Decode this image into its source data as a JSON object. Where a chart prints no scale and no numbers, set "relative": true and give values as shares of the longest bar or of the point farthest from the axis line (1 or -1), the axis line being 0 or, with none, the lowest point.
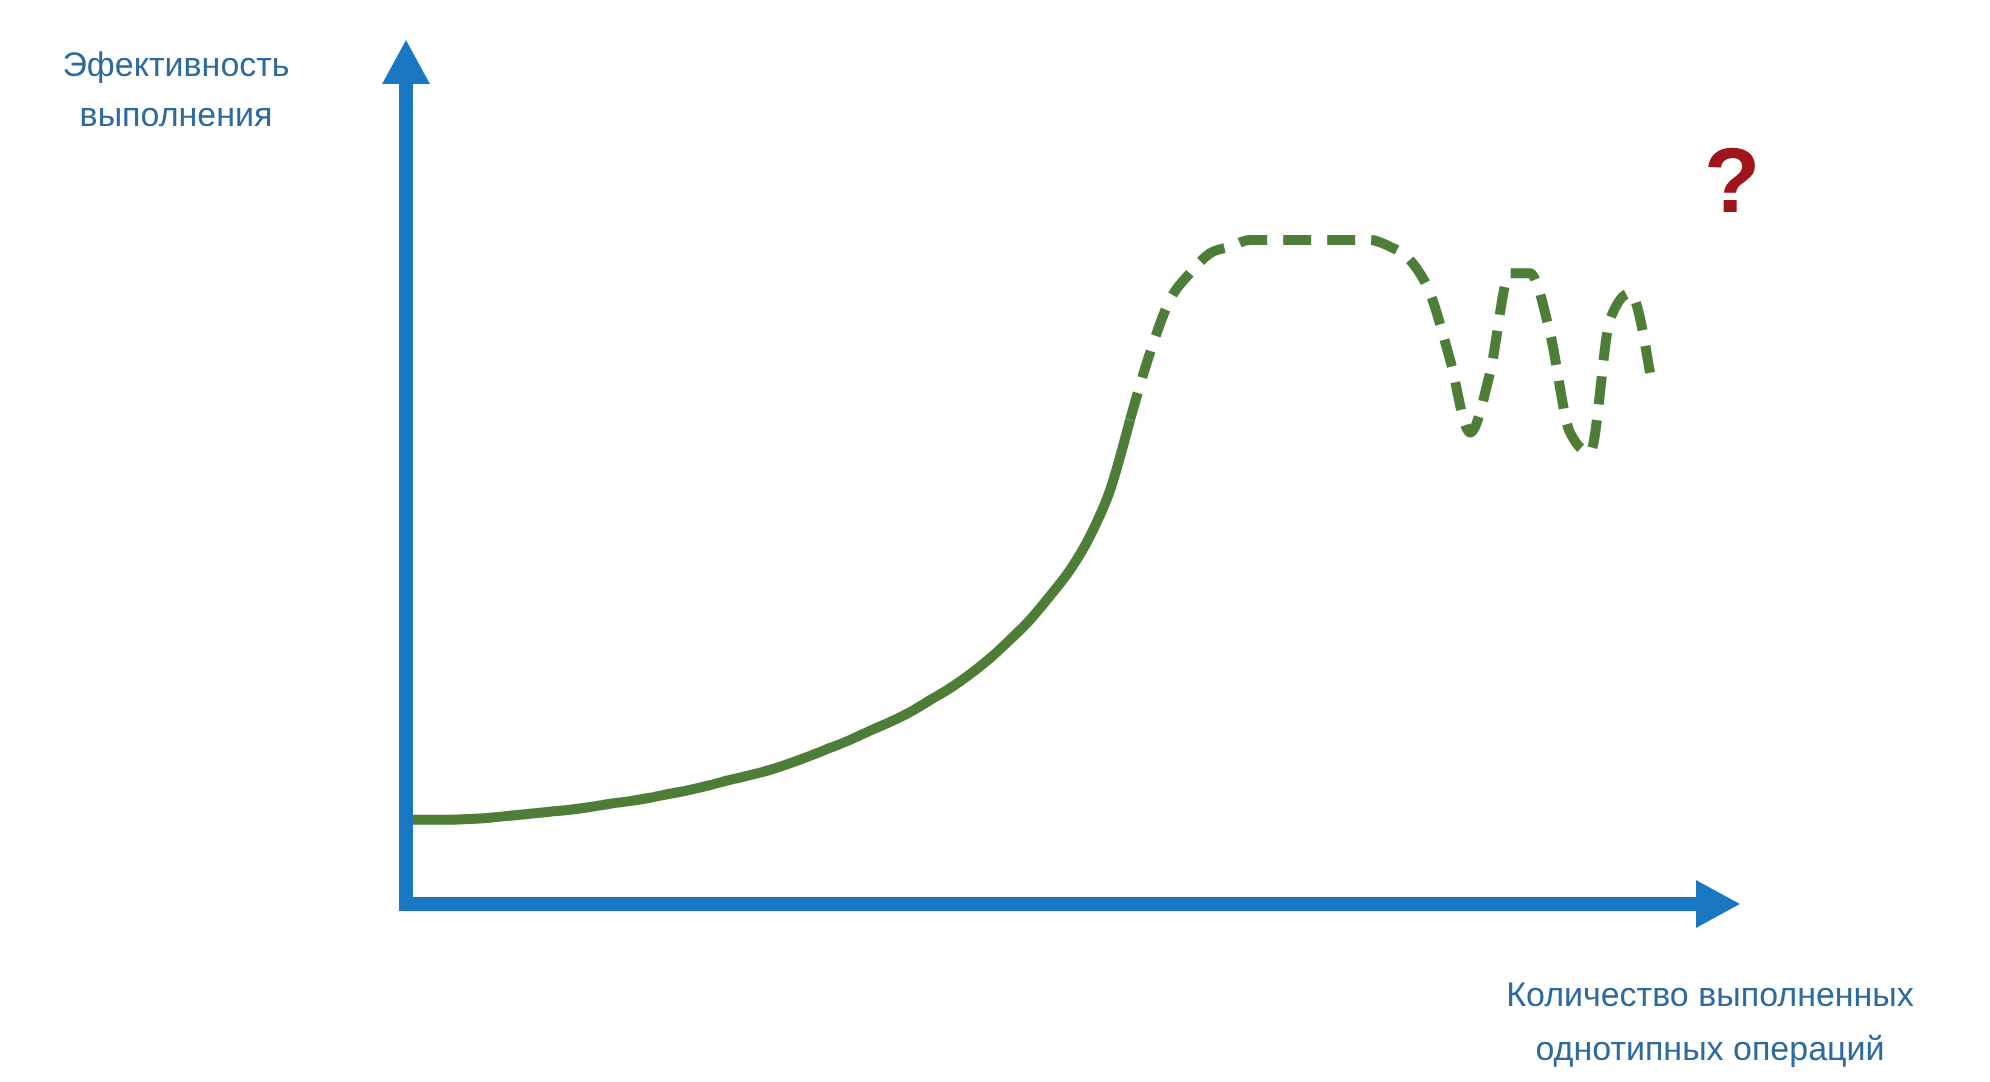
{
  "chart_data": {
    "type": "line",
    "relative": true,
    "xlabel": "Количество выполненных однотипных операций",
    "ylabel": "Эфективность выполнения",
    "categories": [
      null,
      null,
      null,
      null,
      null,
      null,
      null,
      null,
      null,
      null,
      null,
      null,
      null,
      null,
      null,
      null,
      null,
      null,
      null,
      null,
      null,
      null,
      null,
      null,
      null,
      null,
      null,
      null,
      null,
      null,
      null,
      null,
      null,
      null,
      null,
      null,
      null,
      null,
      null,
      null,
      null,
      null,
      null,
      null,
      null,
      null,
      null,
      null,
      null,
      null,
      null,
      null,
      null,
      null,
      null,
      null,
      null,
      null,
      null,
      null,
      null,
      null,
      null
    ],
    "series": [
      {
        "color": "#4e7d38",
        "line_style": "solid",
        "values": [
          0.127,
          0.127,
          0.127,
          0.128,
          0.13,
          0.133,
          0.136,
          0.139,
          0.142,
          0.146,
          0.151,
          0.155,
          0.16,
          0.166,
          0.172,
          0.179,
          0.187,
          0.194,
          0.202,
          0.212,
          0.223,
          0.235,
          0.247,
          0.261,
          0.274,
          0.289,
          0.307,
          0.325,
          0.346,
          0.37,
          0.398,
          0.428,
          0.464,
          0.503,
          0.554,
          0.623,
          0.729,
          null,
          null,
          null,
          null,
          null,
          null,
          null,
          null,
          null,
          null,
          null,
          null,
          null,
          null,
          null,
          null,
          null,
          null,
          null,
          null,
          null,
          null,
          null,
          null,
          null,
          null
        ]
      },
      {
        "color": "#4e7d38",
        "line_style": "dashed",
        "values": [
          null,
          null,
          null,
          null,
          null,
          null,
          null,
          null,
          null,
          null,
          null,
          null,
          null,
          null,
          null,
          null,
          null,
          null,
          null,
          null,
          null,
          null,
          null,
          null,
          null,
          null,
          null,
          null,
          null,
          null,
          null,
          null,
          null,
          null,
          null,
          null,
          0.729,
          0.83,
          0.91,
          0.95,
          0.98,
          0.99,
          1.0,
          1.0,
          1.0,
          1.0,
          1.0,
          1.0,
          1.0,
          0.99,
          0.97,
          0.92,
          0.82,
          0.71,
          0.8,
          0.95,
          0.95,
          0.86,
          0.71,
          0.68,
          0.88,
          0.92,
          0.8
        ]
      }
    ],
    "annotations": [
      "?"
    ]
  }
}
